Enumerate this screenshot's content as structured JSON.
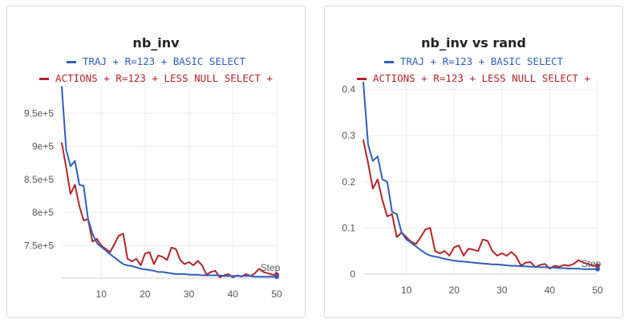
{
  "chart_data": [
    {
      "type": "line",
      "title": "nb_inv",
      "xlabel": "Step",
      "xlim": [
        1,
        50
      ],
      "ylim": [
        700800,
        1000000
      ],
      "x_ticks": [
        10,
        20,
        30,
        40,
        50
      ],
      "y_ticks": [
        750000,
        800000,
        850000,
        900000,
        950000
      ],
      "y_tick_labels": [
        "7.5e+5",
        "8e+5",
        "8.5e+5",
        "9e+5",
        "9.5e+5"
      ],
      "grid": true,
      "legend_position": "top",
      "series": [
        {
          "name": "TRAJ + R=123 + BASIC SELECT",
          "color": "#2e5fbf",
          "x": [
            1,
            2,
            3,
            4,
            5,
            6,
            7,
            8,
            9,
            10,
            11,
            12,
            13,
            14,
            15,
            16,
            17,
            18,
            19,
            20,
            21,
            22,
            23,
            24,
            25,
            26,
            27,
            28,
            29,
            30,
            31,
            32,
            33,
            34,
            35,
            36,
            37,
            38,
            39,
            40,
            41,
            42,
            43,
            44,
            45,
            46,
            47,
            48,
            49,
            50
          ],
          "y": [
            990000,
            895000,
            870000,
            878000,
            842000,
            840000,
            790000,
            768000,
            754000,
            748000,
            743000,
            737000,
            732000,
            727000,
            722000,
            720000,
            719000,
            717000,
            715000,
            714000,
            713000,
            712000,
            710000,
            710000,
            709000,
            708000,
            707000,
            707000,
            707000,
            706000,
            706000,
            706000,
            705000,
            705000,
            705000,
            705000,
            705000,
            704000,
            704000,
            704000,
            704000,
            704000,
            704000,
            704000,
            703000,
            703000,
            703000,
            703000,
            703000,
            703000
          ]
        },
        {
          "name": "ACTIONS + R=123 + LESS NULL SELECT +",
          "color": "#b3242a",
          "x": [
            1,
            2,
            3,
            4,
            5,
            6,
            7,
            8,
            9,
            10,
            11,
            12,
            13,
            14,
            15,
            16,
            17,
            18,
            19,
            20,
            21,
            22,
            23,
            24,
            25,
            26,
            27,
            28,
            29,
            30,
            31,
            32,
            33,
            34,
            35,
            36,
            37,
            38,
            39,
            40,
            41,
            42,
            43,
            44,
            45,
            46,
            47,
            48,
            49,
            50
          ],
          "y": [
            905000,
            868000,
            828000,
            842000,
            810000,
            788000,
            790000,
            756000,
            760000,
            750000,
            745000,
            740000,
            752000,
            765000,
            768000,
            730000,
            726000,
            730000,
            720000,
            738000,
            740000,
            722000,
            735000,
            733000,
            728000,
            747000,
            745000,
            728000,
            722000,
            725000,
            720000,
            727000,
            720000,
            706000,
            710000,
            712000,
            702000,
            705000,
            707000,
            702000,
            705000,
            703000,
            707000,
            704000,
            708000,
            715000,
            710000,
            708000,
            706000,
            706000
          ]
        }
      ]
    },
    {
      "type": "line",
      "title": "nb_inv vs rand",
      "xlabel": "Step",
      "xlim": [
        1,
        50
      ],
      "ylim": [
        0,
        0.42
      ],
      "x_ticks": [
        10,
        20,
        30,
        40,
        50
      ],
      "y_ticks": [
        0,
        0.1,
        0.2,
        0.3,
        0.4
      ],
      "y_tick_labels": [
        "0",
        "0.1",
        "0.2",
        "0.3",
        "0.4"
      ],
      "grid": true,
      "legend_position": "top",
      "series": [
        {
          "name": "TRAJ + R=123 + BASIC SELECT",
          "color": "#2e5fbf",
          "x": [
            1,
            2,
            3,
            4,
            5,
            6,
            7,
            8,
            9,
            10,
            11,
            12,
            13,
            14,
            15,
            16,
            17,
            18,
            19,
            20,
            21,
            22,
            23,
            24,
            25,
            26,
            27,
            28,
            29,
            30,
            31,
            32,
            33,
            34,
            35,
            36,
            37,
            38,
            39,
            40,
            41,
            42,
            43,
            44,
            45,
            46,
            47,
            48,
            49,
            50
          ],
          "y": [
            0.415,
            0.28,
            0.245,
            0.255,
            0.205,
            0.2,
            0.135,
            0.13,
            0.09,
            0.075,
            0.068,
            0.06,
            0.052,
            0.045,
            0.04,
            0.038,
            0.036,
            0.033,
            0.031,
            0.029,
            0.028,
            0.027,
            0.026,
            0.025,
            0.024,
            0.023,
            0.022,
            0.021,
            0.021,
            0.02,
            0.019,
            0.018,
            0.018,
            0.017,
            0.017,
            0.016,
            0.016,
            0.015,
            0.015,
            0.014,
            0.014,
            0.013,
            0.013,
            0.012,
            0.012,
            0.012,
            0.011,
            0.011,
            0.011,
            0.011
          ]
        },
        {
          "name": "ACTIONS + R=123 + LESS NULL SELECT +",
          "color": "#b3242a",
          "x": [
            1,
            2,
            3,
            4,
            5,
            6,
            7,
            8,
            9,
            10,
            11,
            12,
            13,
            14,
            15,
            16,
            17,
            18,
            19,
            20,
            21,
            22,
            23,
            24,
            25,
            26,
            27,
            28,
            29,
            30,
            31,
            32,
            33,
            34,
            35,
            36,
            37,
            38,
            39,
            40,
            41,
            42,
            43,
            44,
            45,
            46,
            47,
            48,
            49,
            50
          ],
          "y": [
            0.29,
            0.24,
            0.185,
            0.205,
            0.16,
            0.125,
            0.13,
            0.08,
            0.09,
            0.08,
            0.07,
            0.065,
            0.08,
            0.097,
            0.1,
            0.05,
            0.045,
            0.05,
            0.04,
            0.058,
            0.062,
            0.04,
            0.055,
            0.053,
            0.05,
            0.075,
            0.072,
            0.05,
            0.04,
            0.045,
            0.04,
            0.048,
            0.038,
            0.018,
            0.025,
            0.026,
            0.015,
            0.02,
            0.022,
            0.012,
            0.018,
            0.016,
            0.02,
            0.018,
            0.022,
            0.03,
            0.025,
            0.022,
            0.018,
            0.018
          ]
        }
      ]
    }
  ]
}
